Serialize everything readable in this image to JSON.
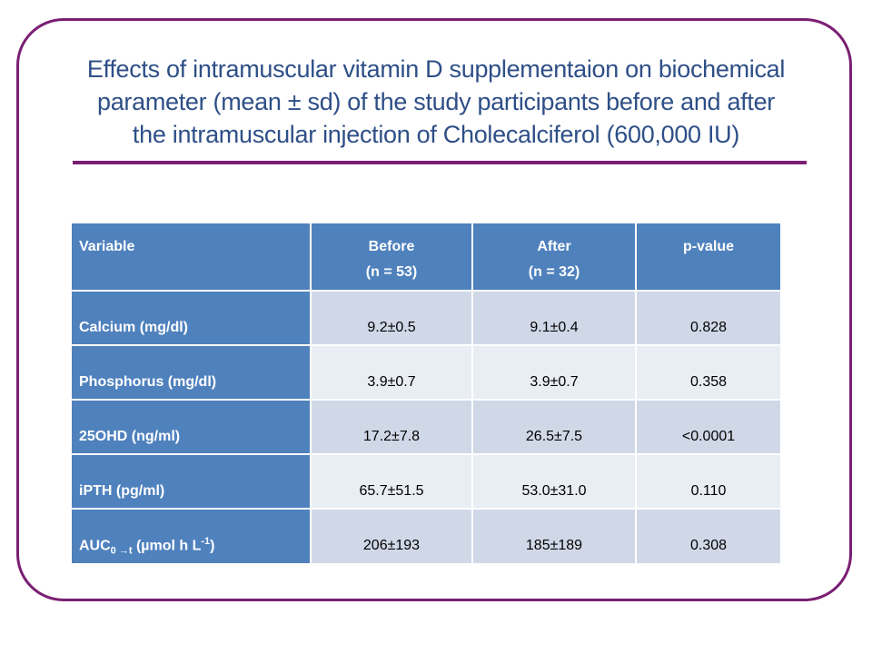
{
  "title_lines": [
    "Effects of intramuscular vitamin D supplementaion on  biochemical",
    "parameter (mean ± sd) of the study participants before and after",
    "the intramuscular injection of Cholecalciferol (600,000 IU)"
  ],
  "table": {
    "headers": {
      "variable": "Variable",
      "before_line1": "Before",
      "before_line2": "(n = 53)",
      "after_line1": "After",
      "after_line2": "(n = 32)",
      "pvalue": "p-value"
    },
    "rows": [
      {
        "variable": "Calcium (mg/dl)",
        "before": "9.2±0.5",
        "after": "9.1±0.4",
        "p": "0.828"
      },
      {
        "variable": "Phosphorus (mg/dl)",
        "before": "3.9±0.7",
        "after": "3.9±0.7",
        "p": "0.358"
      },
      {
        "variable": "25OHD (ng/ml)",
        "before": "17.2±7.8",
        "after": "26.5±7.5",
        "p": "<0.0001"
      },
      {
        "variable": "iPTH (pg/ml)",
        "before": "65.7±51.5",
        "after": "53.0±31.0",
        "p": "0.110"
      },
      {
        "variable_base": "AUC",
        "variable_sub": "0 →t",
        "variable_mid": " (µmol h L",
        "variable_sup": "-1",
        "variable_end": ")",
        "before": "206±193",
        "after": "185±189",
        "p": "0.308"
      }
    ]
  },
  "colors": {
    "frame": "#7a1f73",
    "title": "#2e4f87",
    "header_fill": "#4f81bd",
    "row_odd": "#d0d8e8",
    "row_even": "#e9edf4"
  }
}
